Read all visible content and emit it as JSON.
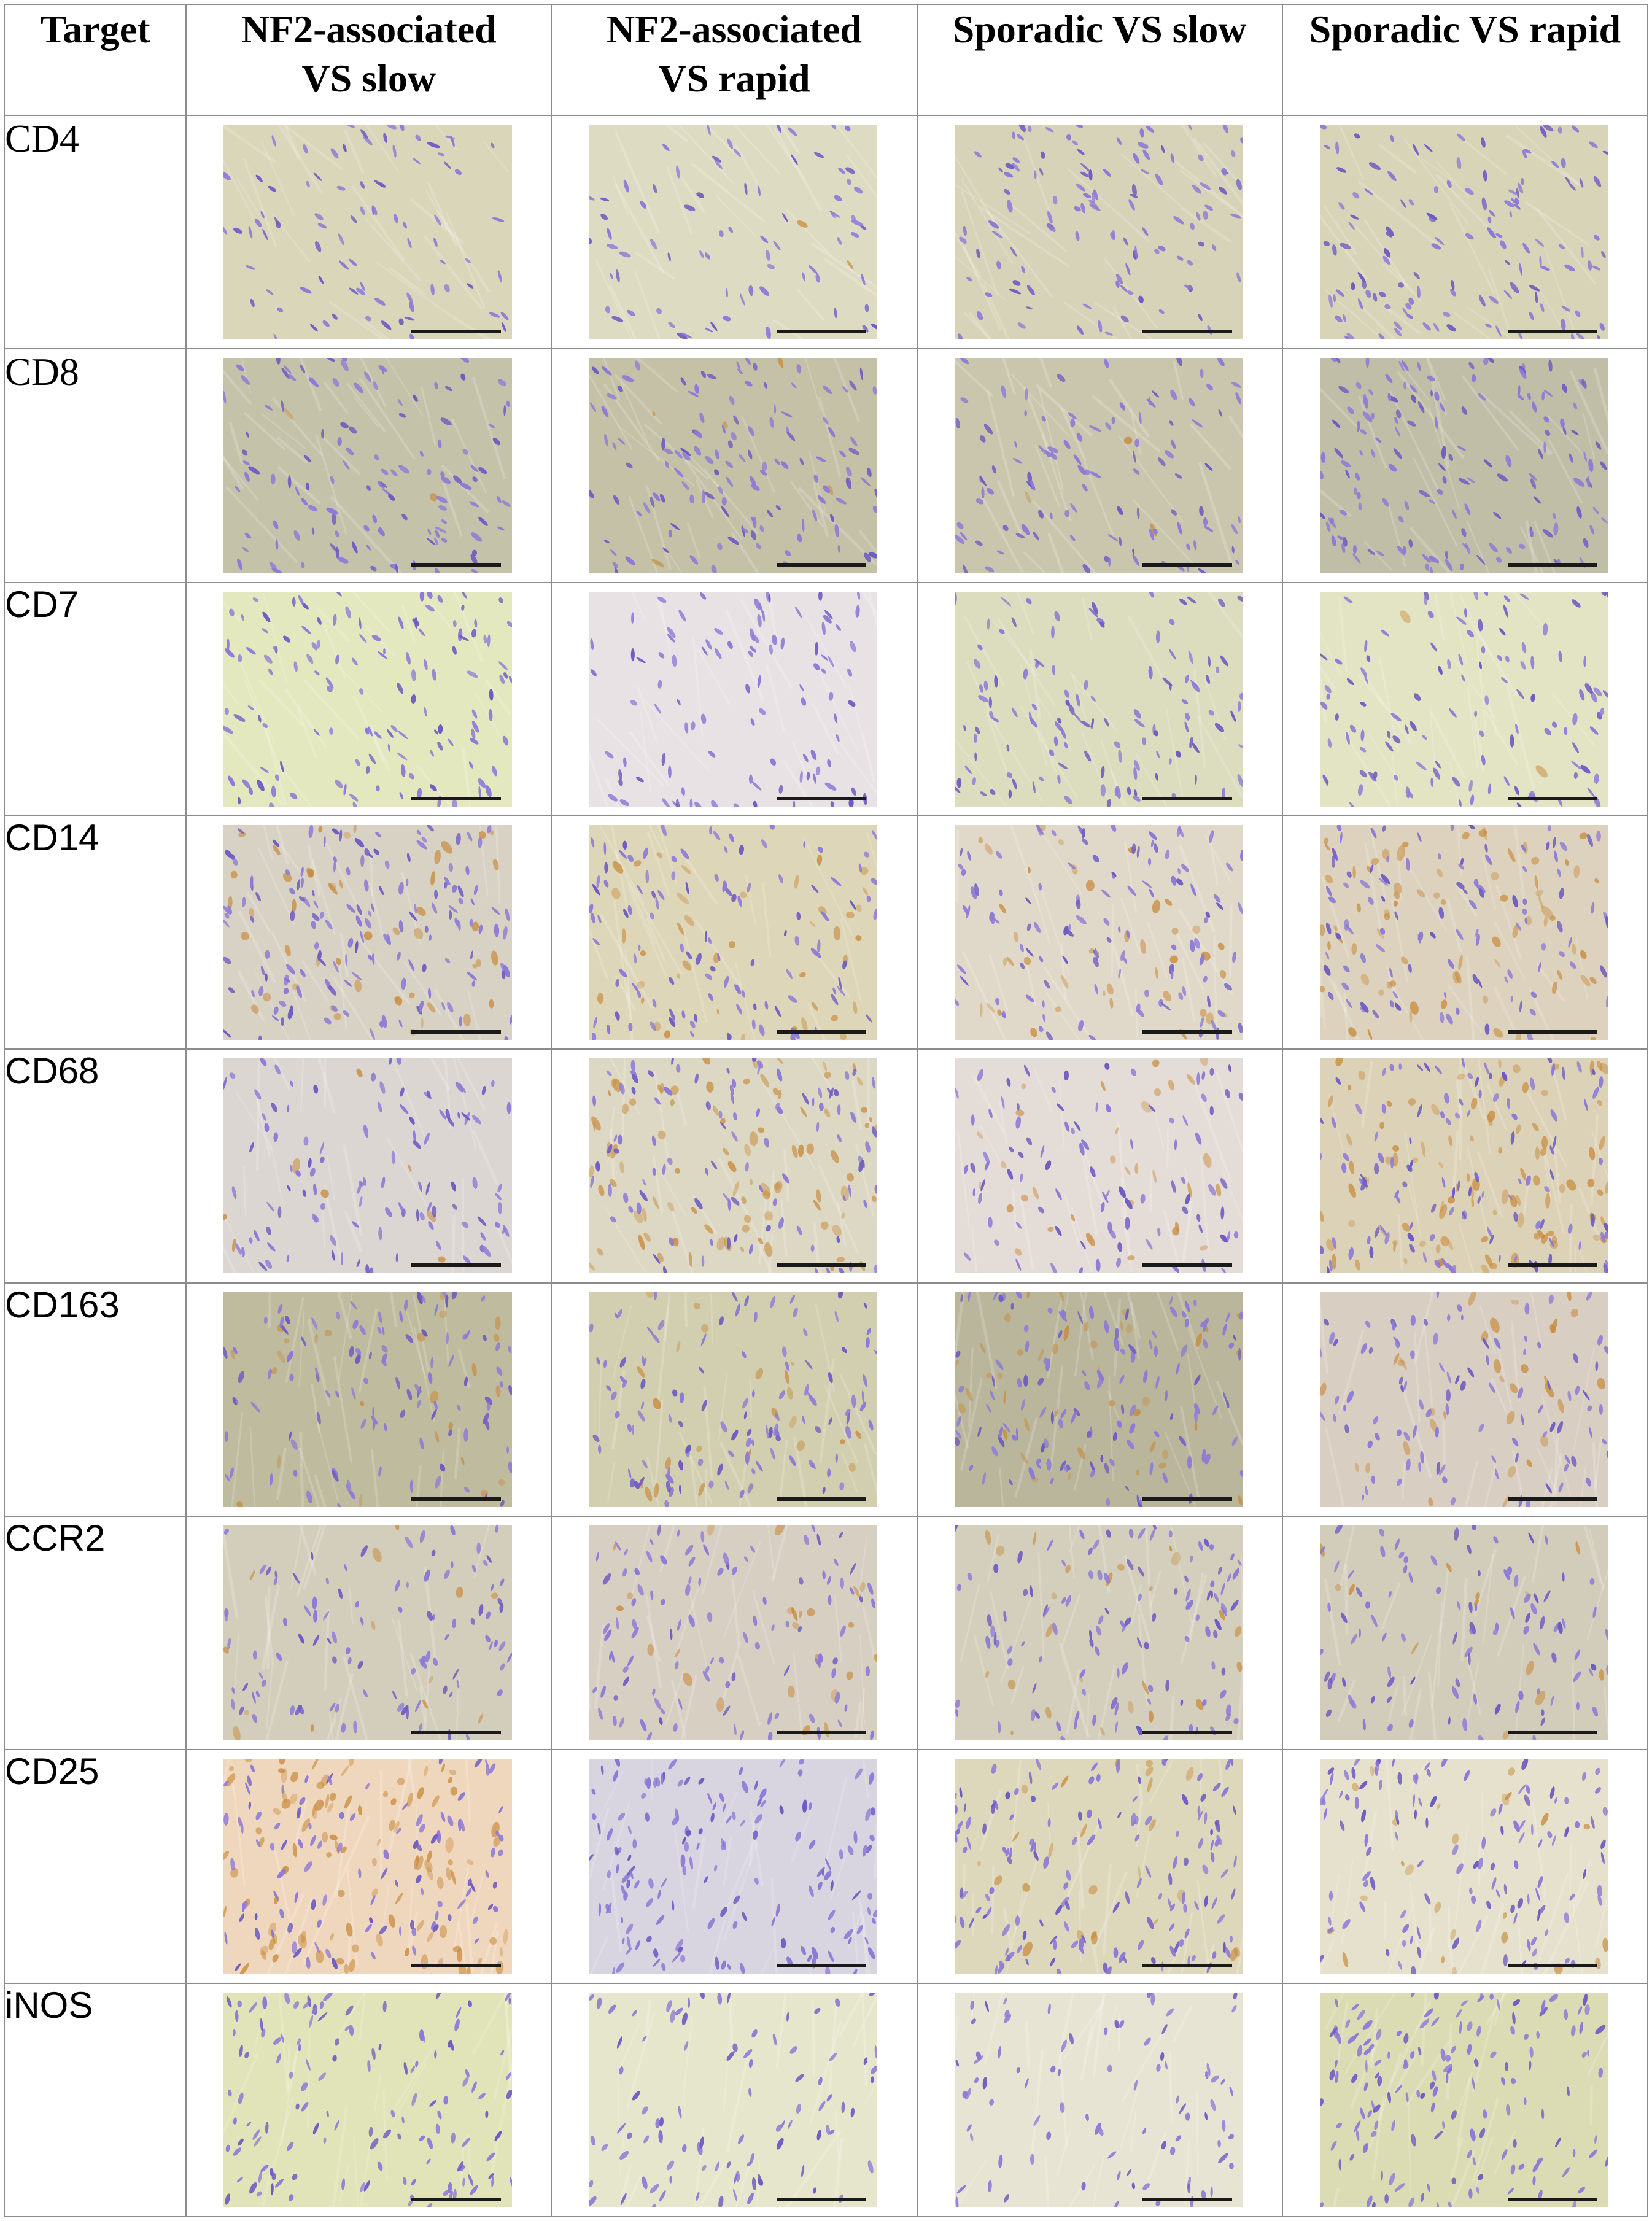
{
  "table": {
    "header": {
      "target": "Target",
      "columns": [
        [
          "NF2-associated",
          "VS slow"
        ],
        [
          "NF2-associated",
          "VS rapid"
        ],
        [
          "Sporadic VS slow"
        ],
        [
          "Sporadic VS rapid"
        ]
      ]
    },
    "rows": [
      {
        "label": "CD4",
        "serif": true,
        "bg": [
          "#d9d6ba",
          "#dedbc3",
          "#d7d3b9",
          "#d8d4b8"
        ],
        "brown": [
          0.0,
          0.01,
          0.0,
          0.0
        ],
        "nuclei": [
          0.55,
          0.5,
          0.75,
          0.85
        ]
      },
      {
        "label": "CD8",
        "serif": true,
        "bg": [
          "#c5c2aa",
          "#c4c1a6",
          "#cac6ae",
          "#c1bea7"
        ],
        "brown": [
          0.01,
          0.03,
          0.02,
          0.0
        ],
        "nuclei": [
          0.8,
          0.85,
          0.7,
          1.0
        ]
      },
      {
        "label": "CD7",
        "serif": false,
        "bg": [
          "#e4e8bf",
          "#e8e2e4",
          "#dcdcbf",
          "#e2e4c4"
        ],
        "brown": [
          0.0,
          0.0,
          0.0,
          0.01
        ],
        "nuclei": [
          0.85,
          0.65,
          0.8,
          0.75
        ]
      },
      {
        "label": "CD14",
        "serif": false,
        "bg": [
          "#d8d2c4",
          "#ddd6b8",
          "#e0d9c9",
          "#dcd2bd"
        ],
        "brown": [
          0.3,
          0.25,
          0.25,
          0.45
        ],
        "nuclei": [
          1.0,
          0.75,
          0.75,
          0.7
        ]
      },
      {
        "label": "CD68",
        "serif": false,
        "bg": [
          "#dcd6d2",
          "#dcd8c4",
          "#e4dcd6",
          "#dcd2b8"
        ],
        "brown": [
          0.05,
          0.55,
          0.2,
          0.6
        ],
        "nuclei": [
          0.7,
          0.65,
          0.6,
          0.75
        ]
      },
      {
        "label": "CD163",
        "serif": false,
        "bg": [
          "#bfbb9e",
          "#d2cfb0",
          "#b9b69c",
          "#d8cfc2"
        ],
        "brown": [
          0.15,
          0.15,
          0.25,
          0.2
        ],
        "nuclei": [
          0.7,
          0.75,
          0.85,
          0.65
        ]
      },
      {
        "label": "CCR2",
        "serif": false,
        "bg": [
          "#d3cebc",
          "#d6cfc2",
          "#d4cfbd",
          "#d2ccba"
        ],
        "brown": [
          0.08,
          0.15,
          0.15,
          0.08
        ],
        "nuclei": [
          0.65,
          0.7,
          0.75,
          0.65
        ]
      },
      {
        "label": "CD25",
        "serif": false,
        "bg": [
          "#efd7bd",
          "#d8d4e0",
          "#ddd8bc",
          "#e6e1cc"
        ],
        "brown": [
          0.65,
          0.0,
          0.15,
          0.15
        ],
        "nuclei": [
          0.7,
          1.0,
          1.0,
          0.8
        ]
      },
      {
        "label": "iNOS",
        "serif": false,
        "bg": [
          "#e1e3b8",
          "#e6e6cc",
          "#e8e4d4",
          "#dcdcb4"
        ],
        "brown": [
          0.0,
          0.0,
          0.0,
          0.0
        ],
        "nuclei": [
          0.85,
          0.6,
          0.55,
          1.0
        ]
      }
    ]
  },
  "colors": {
    "nucleus": "#8c7ad6",
    "nucleus_dark": "#6e5cc2",
    "brown_stain": "#c8893a",
    "scalebar": "#1a1a1a"
  }
}
